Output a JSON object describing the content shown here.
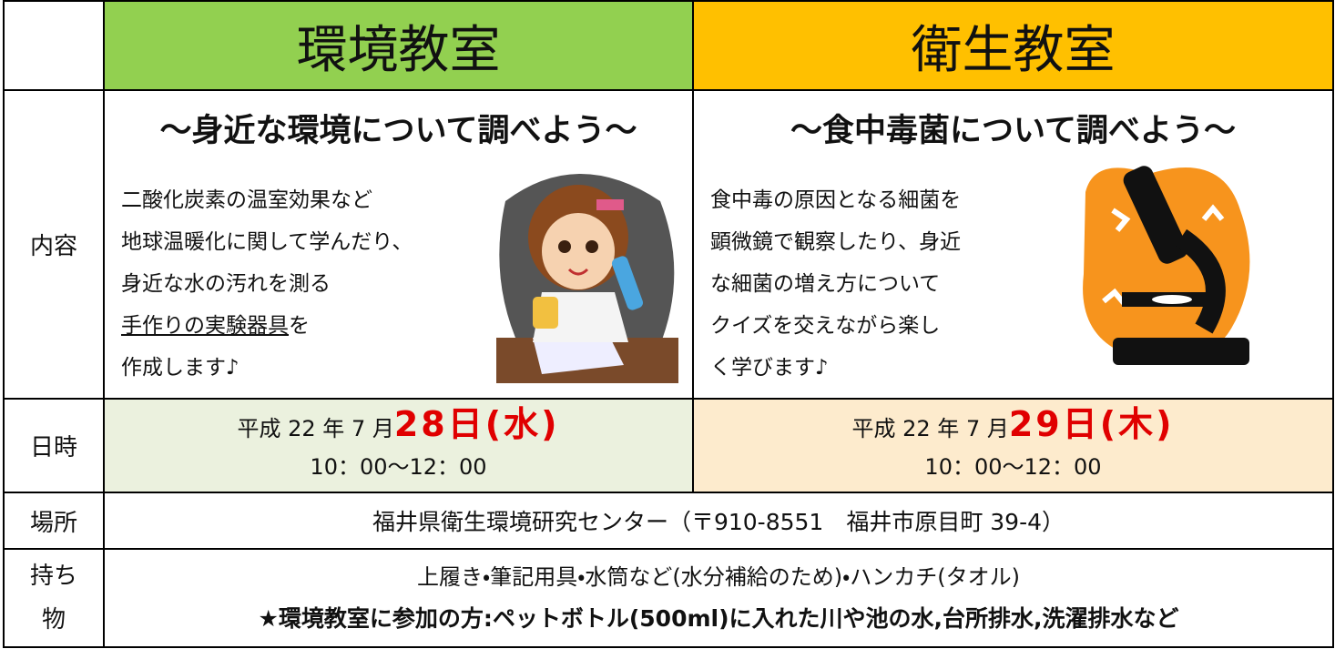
{
  "header": {
    "environment": "環境教室",
    "hygiene": "衛生教室"
  },
  "content": {
    "label": "内容",
    "environment": {
      "heading": "～身近な環境について調べよう～",
      "lines": [
        [
          "二酸化炭素の温室効果など"
        ],
        [
          "地球温暖化に関して学んだり、"
        ],
        [
          "身近な水の汚れを測る"
        ],
        [
          "手作りの実験器具",
          "を"
        ],
        [
          "作成します♪"
        ]
      ]
    },
    "hygiene": {
      "heading": "～食中毒菌について調べよう～",
      "lines": [
        [
          "食中毒の原因となる細菌を"
        ],
        [
          "顕微鏡で観察したり、身近"
        ],
        [
          "な細菌の増え方について"
        ],
        [
          "クイズを交えながら楽し"
        ],
        [
          "く学びます♪"
        ]
      ]
    }
  },
  "date": {
    "label": "日時",
    "environment": {
      "prefix": "平成 22 年 7 月",
      "day": "28日(水)",
      "time": "10：00～12：00"
    },
    "hygiene": {
      "prefix": "平成 22 年 7 月",
      "day": "29日(木)",
      "time": "10：00～12：00"
    }
  },
  "place": {
    "label": "場所",
    "text": "福井県衛生環境研究センター（〒910-8551　福井市原目町 39-4）"
  },
  "items": {
    "label": "持ち物",
    "lines": [
      "上履き・筆記用具・水筒など(水分補給のため)・ハンカチ(タオル)",
      "★環境教室に参加の方:ペットボトル(500ml)に入れた川や池の水,台所排水,洗濯排水など"
    ]
  }
}
